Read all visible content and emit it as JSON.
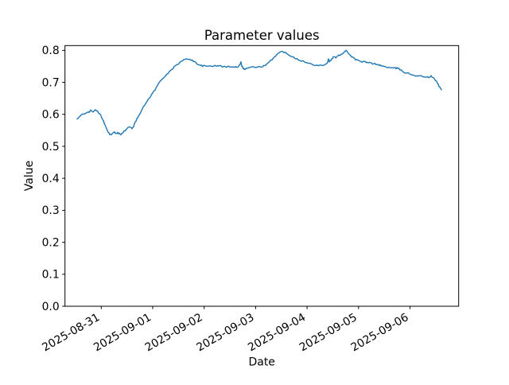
{
  "chart_data": {
    "type": "line",
    "title": "Parameter values",
    "xlabel": "Date",
    "ylabel": "Value",
    "grid": false,
    "legend": null,
    "x_unit": "days since 2025-08-31 00:00",
    "xlim": [
      -0.705,
      6.946
    ],
    "ylim": [
      0.0,
      0.815
    ],
    "xticks": [
      {
        "t": 0,
        "label": "2025-08-31"
      },
      {
        "t": 1,
        "label": "2025-09-01"
      },
      {
        "t": 2,
        "label": "2025-09-02"
      },
      {
        "t": 3,
        "label": "2025-09-03"
      },
      {
        "t": 4,
        "label": "2025-09-04"
      },
      {
        "t": 5,
        "label": "2025-09-05"
      },
      {
        "t": 6,
        "label": "2025-09-06"
      }
    ],
    "yticks": [
      {
        "v": 0.0,
        "label": "0.0"
      },
      {
        "v": 0.1,
        "label": "0.1"
      },
      {
        "v": 0.2,
        "label": "0.2"
      },
      {
        "v": 0.3,
        "label": "0.3"
      },
      {
        "v": 0.4,
        "label": "0.4"
      },
      {
        "v": 0.5,
        "label": "0.5"
      },
      {
        "v": 0.6,
        "label": "0.6"
      },
      {
        "v": 0.7,
        "label": "0.7"
      },
      {
        "v": 0.8,
        "label": "0.8"
      }
    ],
    "noise_amplitude": 0.0022,
    "series": [
      {
        "name": "parameter-value",
        "color": "#1f77b4",
        "points": [
          [
            -0.468,
            0.585
          ],
          [
            -0.422,
            0.591
          ],
          [
            -0.391,
            0.597
          ],
          [
            -0.36,
            0.601
          ],
          [
            -0.314,
            0.604
          ],
          [
            -0.267,
            0.607
          ],
          [
            -0.236,
            0.605
          ],
          [
            -0.206,
            0.613
          ],
          [
            -0.175,
            0.61
          ],
          [
            -0.144,
            0.608
          ],
          [
            -0.113,
            0.613
          ],
          [
            -0.082,
            0.611
          ],
          [
            -0.051,
            0.605
          ],
          [
            -0.02,
            0.598
          ],
          [
            0.011,
            0.59
          ],
          [
            0.042,
            0.58
          ],
          [
            0.073,
            0.568
          ],
          [
            0.104,
            0.554
          ],
          [
            0.134,
            0.545
          ],
          [
            0.165,
            0.539
          ],
          [
            0.196,
            0.536
          ],
          [
            0.227,
            0.541
          ],
          [
            0.258,
            0.544
          ],
          [
            0.289,
            0.539
          ],
          [
            0.32,
            0.542
          ],
          [
            0.351,
            0.54
          ],
          [
            0.382,
            0.538
          ],
          [
            0.413,
            0.543
          ],
          [
            0.444,
            0.547
          ],
          [
            0.475,
            0.551
          ],
          [
            0.505,
            0.556
          ],
          [
            0.536,
            0.56
          ],
          [
            0.567,
            0.559
          ],
          [
            0.598,
            0.557
          ],
          [
            0.629,
            0.563
          ],
          [
            0.66,
            0.574
          ],
          [
            0.691,
            0.585
          ],
          [
            0.722,
            0.595
          ],
          [
            0.753,
            0.604
          ],
          [
            0.784,
            0.613
          ],
          [
            0.815,
            0.621
          ],
          [
            0.861,
            0.634
          ],
          [
            0.907,
            0.645
          ],
          [
            0.954,
            0.656
          ],
          [
            1.0,
            0.667
          ],
          [
            1.046,
            0.677
          ],
          [
            1.093,
            0.69
          ],
          [
            1.139,
            0.702
          ],
          [
            1.186,
            0.711
          ],
          [
            1.232,
            0.719
          ],
          [
            1.278,
            0.726
          ],
          [
            1.325,
            0.732
          ],
          [
            1.371,
            0.74
          ],
          [
            1.417,
            0.748
          ],
          [
            1.464,
            0.755
          ],
          [
            1.51,
            0.76
          ],
          [
            1.557,
            0.765
          ],
          [
            1.603,
            0.77
          ],
          [
            1.649,
            0.772
          ],
          [
            1.696,
            0.774
          ],
          [
            1.742,
            0.771
          ],
          [
            1.788,
            0.766
          ],
          [
            1.834,
            0.763
          ],
          [
            1.881,
            0.757
          ],
          [
            1.927,
            0.753
          ],
          [
            1.989,
            0.751
          ],
          [
            2.051,
            0.75
          ],
          [
            2.128,
            0.752
          ],
          [
            2.205,
            0.751
          ],
          [
            2.283,
            0.752
          ],
          [
            2.36,
            0.75
          ],
          [
            2.437,
            0.748
          ],
          [
            2.514,
            0.75
          ],
          [
            2.592,
            0.748
          ],
          [
            2.653,
            0.749
          ],
          [
            2.684,
            0.755
          ],
          [
            2.715,
            0.763
          ],
          [
            2.731,
            0.752
          ],
          [
            2.762,
            0.744
          ],
          [
            2.793,
            0.741
          ],
          [
            2.839,
            0.745
          ],
          [
            2.885,
            0.747
          ],
          [
            2.947,
            0.748
          ],
          [
            3.009,
            0.747
          ],
          [
            3.071,
            0.748
          ],
          [
            3.133,
            0.75
          ],
          [
            3.179,
            0.752
          ],
          [
            3.226,
            0.757
          ],
          [
            3.272,
            0.764
          ],
          [
            3.318,
            0.772
          ],
          [
            3.364,
            0.78
          ],
          [
            3.411,
            0.787
          ],
          [
            3.457,
            0.792
          ],
          [
            3.503,
            0.796
          ],
          [
            3.55,
            0.795
          ],
          [
            3.596,
            0.791
          ],
          [
            3.642,
            0.787
          ],
          [
            3.689,
            0.783
          ],
          [
            3.735,
            0.779
          ],
          [
            3.781,
            0.775
          ],
          [
            3.828,
            0.772
          ],
          [
            3.874,
            0.769
          ],
          [
            3.936,
            0.765
          ],
          [
            3.998,
            0.761
          ],
          [
            4.06,
            0.758
          ],
          [
            4.122,
            0.756
          ],
          [
            4.184,
            0.754
          ],
          [
            4.246,
            0.753
          ],
          [
            4.308,
            0.754
          ],
          [
            4.37,
            0.757
          ],
          [
            4.401,
            0.763
          ],
          [
            4.416,
            0.772
          ],
          [
            4.432,
            0.764
          ],
          [
            4.463,
            0.77
          ],
          [
            4.494,
            0.776
          ],
          [
            4.525,
            0.78
          ],
          [
            4.556,
            0.777
          ],
          [
            4.586,
            0.781
          ],
          [
            4.617,
            0.784
          ],
          [
            4.648,
            0.787
          ],
          [
            4.679,
            0.789
          ],
          [
            4.71,
            0.793
          ],
          [
            4.741,
            0.798
          ],
          [
            4.756,
            0.801
          ],
          [
            4.772,
            0.798
          ],
          [
            4.803,
            0.791
          ],
          [
            4.833,
            0.786
          ],
          [
            4.864,
            0.781
          ],
          [
            4.895,
            0.777
          ],
          [
            4.942,
            0.772
          ],
          [
            4.988,
            0.768
          ],
          [
            5.05,
            0.765
          ],
          [
            5.112,
            0.764
          ],
          [
            5.173,
            0.762
          ],
          [
            5.235,
            0.76
          ],
          [
            5.297,
            0.758
          ],
          [
            5.359,
            0.757
          ],
          [
            5.421,
            0.753
          ],
          [
            5.483,
            0.75
          ],
          [
            5.545,
            0.748
          ],
          [
            5.606,
            0.746
          ],
          [
            5.668,
            0.744
          ],
          [
            5.73,
            0.744
          ],
          [
            5.761,
            0.745
          ],
          [
            5.807,
            0.74
          ],
          [
            5.853,
            0.735
          ],
          [
            5.9,
            0.731
          ],
          [
            5.946,
            0.729
          ],
          [
            5.992,
            0.727
          ],
          [
            6.039,
            0.724
          ],
          [
            6.085,
            0.722
          ],
          [
            6.132,
            0.721
          ],
          [
            6.178,
            0.72
          ],
          [
            6.224,
            0.719
          ],
          [
            6.271,
            0.718
          ],
          [
            6.317,
            0.717
          ],
          [
            6.363,
            0.716
          ],
          [
            6.41,
            0.719
          ],
          [
            6.441,
            0.716
          ],
          [
            6.472,
            0.711
          ],
          [
            6.503,
            0.705
          ],
          [
            6.534,
            0.698
          ],
          [
            6.565,
            0.688
          ],
          [
            6.596,
            0.68
          ],
          [
            6.611,
            0.677
          ]
        ]
      }
    ]
  }
}
